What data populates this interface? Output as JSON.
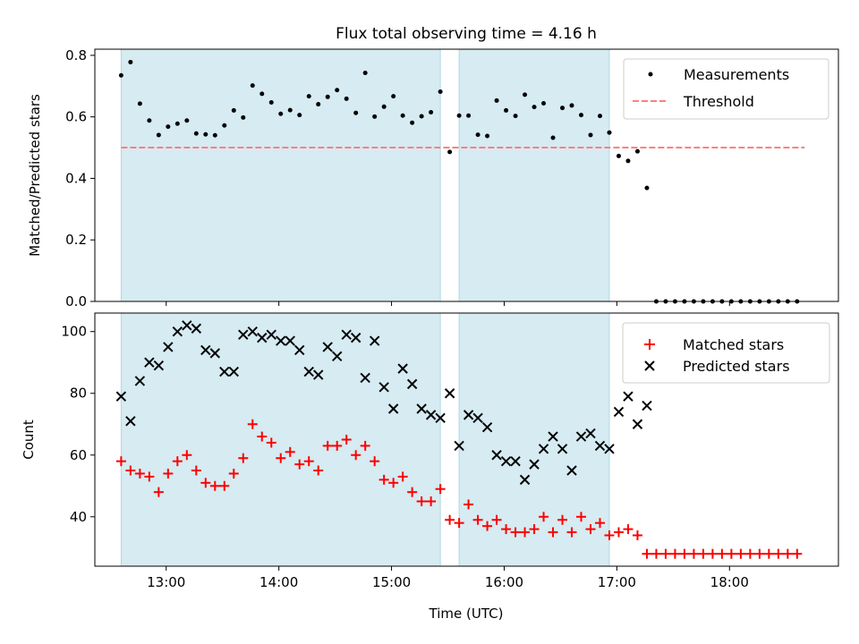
{
  "figure_title": "Flux total observing time = 4.16 h",
  "colors": {
    "shade": "#add8e6",
    "threshold": "#ff7f7f",
    "matched": "#ff0000",
    "predicted": "#000000",
    "measurement": "#000000"
  },
  "chart_data": [
    {
      "type": "scatter",
      "title": "Flux total observing time = 4.16 h",
      "xlabel": "",
      "ylabel": "Matched/Predicted stars",
      "xlim": [
        "12:22",
        "18:58"
      ],
      "ylim": [
        0,
        0.82
      ],
      "yticks": [
        0.0,
        0.2,
        0.4,
        0.6,
        0.8
      ],
      "ytick_labels": [
        "0.0",
        "0.2",
        "0.4",
        "0.6",
        "0.8"
      ],
      "legend_position": "top-right",
      "shaded_intervals": [
        [
          "12:36",
          "15:26"
        ],
        [
          "15:36",
          "16:56"
        ]
      ],
      "series": [
        {
          "name": "Measurements",
          "marker": "dot",
          "points": [
            [
              "12:36",
              0.735
            ],
            [
              "12:41",
              0.778
            ],
            [
              "12:46",
              0.643
            ],
            [
              "12:51",
              0.588
            ],
            [
              "12:56",
              0.541
            ],
            [
              "13:01",
              0.568
            ],
            [
              "13:06",
              0.578
            ],
            [
              "13:11",
              0.588
            ],
            [
              "13:16",
              0.546
            ],
            [
              "13:21",
              0.543
            ],
            [
              "13:26",
              0.54
            ],
            [
              "13:31",
              0.572
            ],
            [
              "13:36",
              0.621
            ],
            [
              "13:41",
              0.598
            ],
            [
              "13:46",
              0.702
            ],
            [
              "13:51",
              0.675
            ],
            [
              "13:56",
              0.647
            ],
            [
              "14:01",
              0.61
            ],
            [
              "14:06",
              0.622
            ],
            [
              "14:11",
              0.606
            ],
            [
              "14:16",
              0.667
            ],
            [
              "14:21",
              0.641
            ],
            [
              "14:26",
              0.665
            ],
            [
              "14:31",
              0.687
            ],
            [
              "14:36",
              0.659
            ],
            [
              "14:41",
              0.613
            ],
            [
              "14:46",
              0.743
            ],
            [
              "14:51",
              0.601
            ],
            [
              "14:56",
              0.633
            ],
            [
              "15:01",
              0.667
            ],
            [
              "15:06",
              0.604
            ],
            [
              "15:11",
              0.581
            ],
            [
              "15:16",
              0.602
            ],
            [
              "15:21",
              0.615
            ],
            [
              "15:26",
              0.682
            ],
            [
              "15:31",
              0.486
            ],
            [
              "15:36",
              0.604
            ],
            [
              "15:41",
              0.604
            ],
            [
              "15:46",
              0.542
            ],
            [
              "15:51",
              0.538
            ],
            [
              "15:56",
              0.653
            ],
            [
              "16:01",
              0.621
            ],
            [
              "16:06",
              0.603
            ],
            [
              "16:11",
              0.672
            ],
            [
              "16:16",
              0.632
            ],
            [
              "16:21",
              0.644
            ],
            [
              "16:26",
              0.532
            ],
            [
              "16:31",
              0.629
            ],
            [
              "16:36",
              0.637
            ],
            [
              "16:41",
              0.606
            ],
            [
              "16:46",
              0.541
            ],
            [
              "16:51",
              0.603
            ],
            [
              "16:56",
              0.549
            ],
            [
              "17:01",
              0.473
            ],
            [
              "17:06",
              0.457
            ],
            [
              "17:11",
              0.488
            ],
            [
              "17:16",
              0.369
            ],
            [
              "17:21",
              0.0
            ],
            [
              "17:26",
              0.0
            ],
            [
              "17:31",
              0.0
            ],
            [
              "17:36",
              0.0
            ],
            [
              "17:41",
              0.0
            ],
            [
              "17:46",
              0.0
            ],
            [
              "17:51",
              0.0
            ],
            [
              "17:56",
              0.0
            ],
            [
              "18:01",
              0.0
            ],
            [
              "18:06",
              0.0
            ],
            [
              "18:11",
              0.0
            ],
            [
              "18:16",
              0.0
            ],
            [
              "18:21",
              0.0
            ],
            [
              "18:26",
              0.0
            ],
            [
              "18:31",
              0.0
            ],
            [
              "18:36",
              0.0
            ]
          ]
        },
        {
          "name": "Threshold",
          "style": "dashed-line",
          "points": [
            [
              "12:36",
              0.5
            ],
            [
              "18:40",
              0.5
            ]
          ]
        }
      ]
    },
    {
      "type": "scatter",
      "xlabel": "Time (UTC)",
      "ylabel": "Count",
      "xlim": [
        "12:22",
        "18:58"
      ],
      "ylim": [
        24,
        106
      ],
      "yticks": [
        40,
        60,
        80,
        100
      ],
      "ytick_labels": [
        "40",
        "60",
        "80",
        "100"
      ],
      "xticks": [
        "13:00",
        "14:00",
        "15:00",
        "16:00",
        "17:00",
        "18:00"
      ],
      "xtick_labels": [
        "13:00",
        "14:00",
        "15:00",
        "16:00",
        "17:00",
        "18:00"
      ],
      "legend_position": "top-right",
      "shaded_intervals": [
        [
          "12:36",
          "15:26"
        ],
        [
          "15:36",
          "16:56"
        ]
      ],
      "series": [
        {
          "name": "Matched stars",
          "marker": "plus",
          "points": [
            [
              "12:36",
              58
            ],
            [
              "12:41",
              55
            ],
            [
              "12:46",
              54
            ],
            [
              "12:51",
              53
            ],
            [
              "12:56",
              48
            ],
            [
              "13:01",
              54
            ],
            [
              "13:06",
              58
            ],
            [
              "13:11",
              60
            ],
            [
              "13:16",
              55
            ],
            [
              "13:21",
              51
            ],
            [
              "13:26",
              50
            ],
            [
              "13:31",
              50
            ],
            [
              "13:36",
              54
            ],
            [
              "13:41",
              59
            ],
            [
              "13:46",
              70
            ],
            [
              "13:51",
              66
            ],
            [
              "13:56",
              64
            ],
            [
              "14:01",
              59
            ],
            [
              "14:06",
              61
            ],
            [
              "14:11",
              57
            ],
            [
              "14:16",
              58
            ],
            [
              "14:21",
              55
            ],
            [
              "14:26",
              63
            ],
            [
              "14:31",
              63
            ],
            [
              "14:36",
              65
            ],
            [
              "14:41",
              60
            ],
            [
              "14:46",
              63
            ],
            [
              "14:51",
              58
            ],
            [
              "14:56",
              52
            ],
            [
              "15:01",
              51
            ],
            [
              "15:06",
              53
            ],
            [
              "15:11",
              48
            ],
            [
              "15:16",
              45
            ],
            [
              "15:21",
              45
            ],
            [
              "15:26",
              49
            ],
            [
              "15:31",
              39
            ],
            [
              "15:36",
              38
            ],
            [
              "15:41",
              44
            ],
            [
              "15:46",
              39
            ],
            [
              "15:51",
              37
            ],
            [
              "15:56",
              39
            ],
            [
              "16:01",
              36
            ],
            [
              "16:06",
              35
            ],
            [
              "16:11",
              35
            ],
            [
              "16:16",
              36
            ],
            [
              "16:21",
              40
            ],
            [
              "16:26",
              35
            ],
            [
              "16:31",
              39
            ],
            [
              "16:36",
              35
            ],
            [
              "16:41",
              40
            ],
            [
              "16:46",
              36
            ],
            [
              "16:51",
              38
            ],
            [
              "16:56",
              34
            ],
            [
              "17:01",
              35
            ],
            [
              "17:06",
              36
            ],
            [
              "17:11",
              34
            ],
            [
              "17:16",
              28
            ],
            [
              "17:21",
              28
            ],
            [
              "17:26",
              28
            ],
            [
              "17:31",
              28
            ],
            [
              "17:36",
              28
            ],
            [
              "17:41",
              28
            ],
            [
              "17:46",
              28
            ],
            [
              "17:51",
              28
            ],
            [
              "17:56",
              28
            ],
            [
              "18:01",
              28
            ],
            [
              "18:06",
              28
            ],
            [
              "18:11",
              28
            ],
            [
              "18:16",
              28
            ],
            [
              "18:21",
              28
            ],
            [
              "18:26",
              28
            ],
            [
              "18:31",
              28
            ],
            [
              "18:36",
              28
            ]
          ]
        },
        {
          "name": "Predicted stars",
          "marker": "x",
          "points": [
            [
              "12:36",
              79
            ],
            [
              "12:41",
              71
            ],
            [
              "12:46",
              84
            ],
            [
              "12:51",
              90
            ],
            [
              "12:56",
              89
            ],
            [
              "13:01",
              95
            ],
            [
              "13:06",
              100
            ],
            [
              "13:11",
              102
            ],
            [
              "13:16",
              101
            ],
            [
              "13:21",
              94
            ],
            [
              "13:26",
              93
            ],
            [
              "13:31",
              87
            ],
            [
              "13:36",
              87
            ],
            [
              "13:41",
              99
            ],
            [
              "13:46",
              100
            ],
            [
              "13:51",
              98
            ],
            [
              "13:56",
              99
            ],
            [
              "14:01",
              97
            ],
            [
              "14:06",
              97
            ],
            [
              "14:11",
              94
            ],
            [
              "14:16",
              87
            ],
            [
              "14:21",
              86
            ],
            [
              "14:26",
              95
            ],
            [
              "14:31",
              92
            ],
            [
              "14:36",
              99
            ],
            [
              "14:41",
              98
            ],
            [
              "14:46",
              85
            ],
            [
              "14:51",
              97
            ],
            [
              "14:56",
              82
            ],
            [
              "15:01",
              75
            ],
            [
              "15:06",
              88
            ],
            [
              "15:11",
              83
            ],
            [
              "15:16",
              75
            ],
            [
              "15:21",
              73
            ],
            [
              "15:26",
              72
            ],
            [
              "15:31",
              80
            ],
            [
              "15:36",
              63
            ],
            [
              "15:41",
              73
            ],
            [
              "15:46",
              72
            ],
            [
              "15:51",
              69
            ],
            [
              "15:56",
              60
            ],
            [
              "16:01",
              58
            ],
            [
              "16:06",
              58
            ],
            [
              "16:11",
              52
            ],
            [
              "16:16",
              57
            ],
            [
              "16:21",
              62
            ],
            [
              "16:26",
              66
            ],
            [
              "16:31",
              62
            ],
            [
              "16:36",
              55
            ],
            [
              "16:41",
              66
            ],
            [
              "16:46",
              67
            ],
            [
              "16:51",
              63
            ],
            [
              "16:56",
              62
            ],
            [
              "17:01",
              74
            ],
            [
              "17:06",
              79
            ],
            [
              "17:11",
              70
            ],
            [
              "17:16",
              76
            ]
          ]
        }
      ]
    }
  ]
}
